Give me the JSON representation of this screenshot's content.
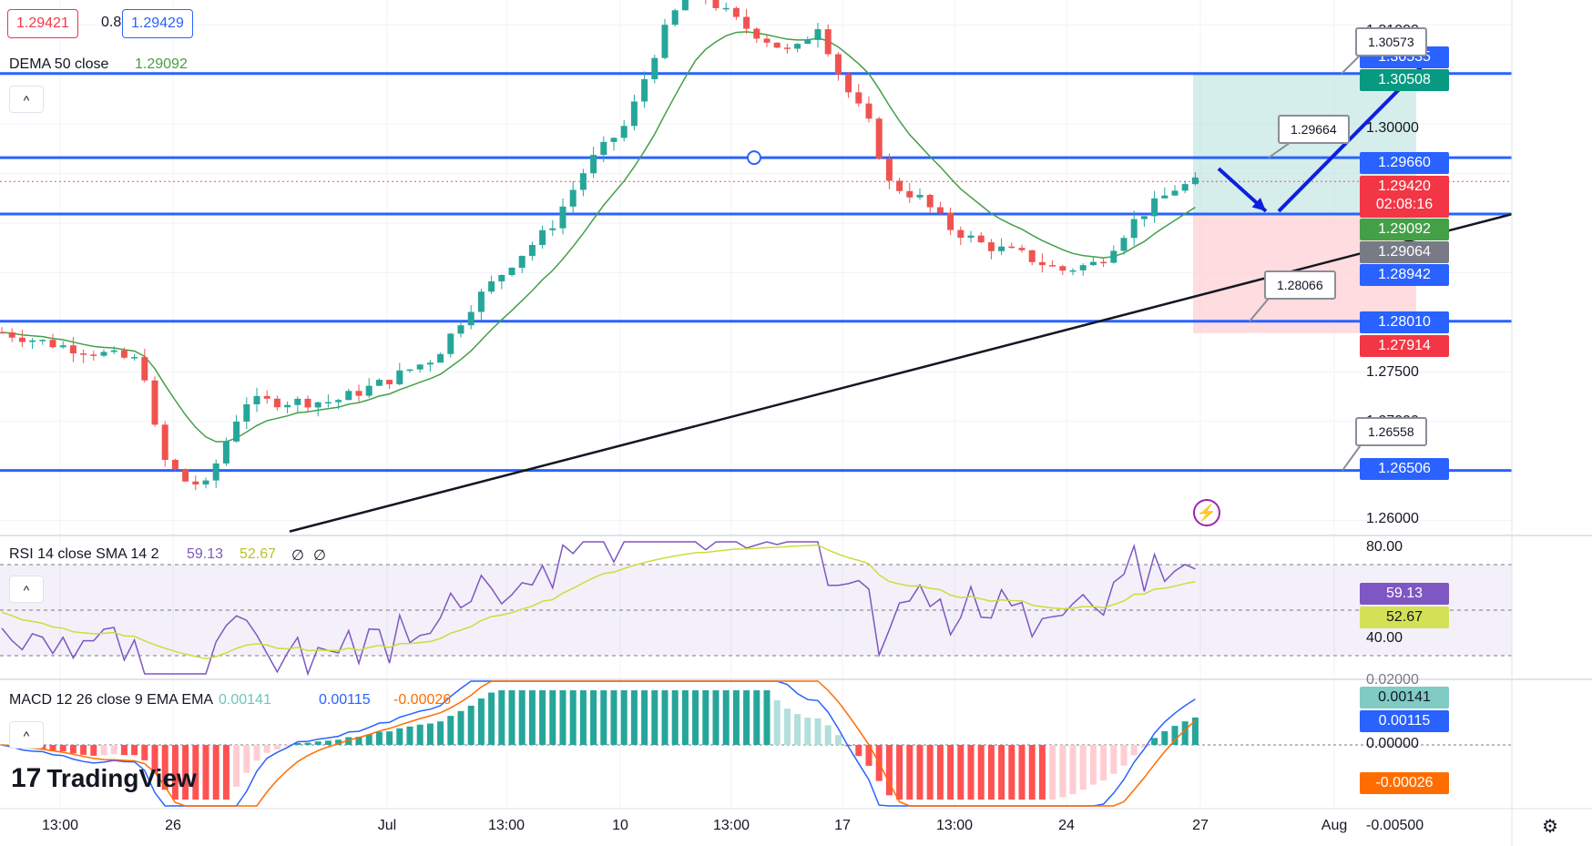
{
  "header": {
    "bid": "1.29421",
    "spread": "0.8",
    "ask": "1.29429",
    "indicator_label": "DEMA 50 close",
    "indicator_value": "1.29092"
  },
  "colors": {
    "accent_blue": "#2962ff",
    "up": "#26a69a",
    "down": "#ef5350",
    "dema": "#43a047",
    "rsi": "#7e57c2",
    "rsi_sma": "#cddc39",
    "macd": "#2962ff",
    "signal": "#ff6d00"
  },
  "chart_data": [
    {
      "type": "candlestick",
      "price_axis_ticks": [
        "1.31000",
        "1.30000",
        "1.27500",
        "1.27000",
        "1.26000"
      ],
      "ylim": [
        1.2585,
        1.3125
      ],
      "time_axis_ticks": [
        "13:00",
        "26",
        "Jul",
        "13:00",
        "10",
        "13:00",
        "17",
        "13:00",
        "24",
        "27",
        "Aug"
      ],
      "horizontal_levels": [
        1.30508,
        1.2966,
        1.29092,
        1.2801,
        1.26506
      ],
      "level_labels": [
        {
          "label": "1.30535",
          "color": "#2962ff"
        },
        {
          "label": "1.30508",
          "color": "#089981"
        },
        {
          "label": "1.29660",
          "color": "#2962ff"
        },
        {
          "label": "1.29420",
          "color": "#f23645",
          "countdown": "02:08:16"
        },
        {
          "label": "1.29092",
          "color": "#43a047"
        },
        {
          "label": "1.29064",
          "color": "#787b86"
        },
        {
          "label": "1.28942",
          "color": "#2962ff"
        },
        {
          "label": "1.28010",
          "color": "#2962ff"
        },
        {
          "label": "1.27914",
          "color": "#f23645"
        },
        {
          "label": "1.26506",
          "color": "#2962ff"
        }
      ],
      "callouts": [
        "1.30573",
        "1.29664",
        "1.28066",
        "1.26558"
      ],
      "trendline": {
        "from": 1.2589,
        "to": 1.2909
      },
      "position_zone": {
        "entry": 1.2909,
        "target": 1.3052,
        "stop": 1.2789
      },
      "last_price": 1.2942,
      "dema_last": 1.29092
    },
    {
      "type": "line",
      "name": "RSI 14 close SMA 14 2",
      "values_display": [
        "59.13",
        "52.67",
        "∅",
        "∅"
      ],
      "axis_ticks": [
        "80.00",
        "40.00"
      ],
      "ylim": [
        20,
        82
      ],
      "bands": [
        70,
        50,
        30
      ],
      "last": {
        "rsi": "59.13",
        "sma": "52.67"
      }
    },
    {
      "type": "bar",
      "name": "MACD 12 26 close 9 EMA EMA",
      "values_display": [
        "0.00141",
        "0.00115",
        "-0.00026"
      ],
      "axis_ticks": [
        "0.02000",
        "0.00000",
        "-0.00500"
      ],
      "last": {
        "histogram": "0.00141",
        "macd": "0.00115",
        "signal": "-0.00026"
      }
    }
  ],
  "ui": {
    "collapse_glyph": "^",
    "brand": "TradingView",
    "brand_mark": "17",
    "flash_icon": "lightning-icon",
    "settings_icon": "gear-icon"
  }
}
